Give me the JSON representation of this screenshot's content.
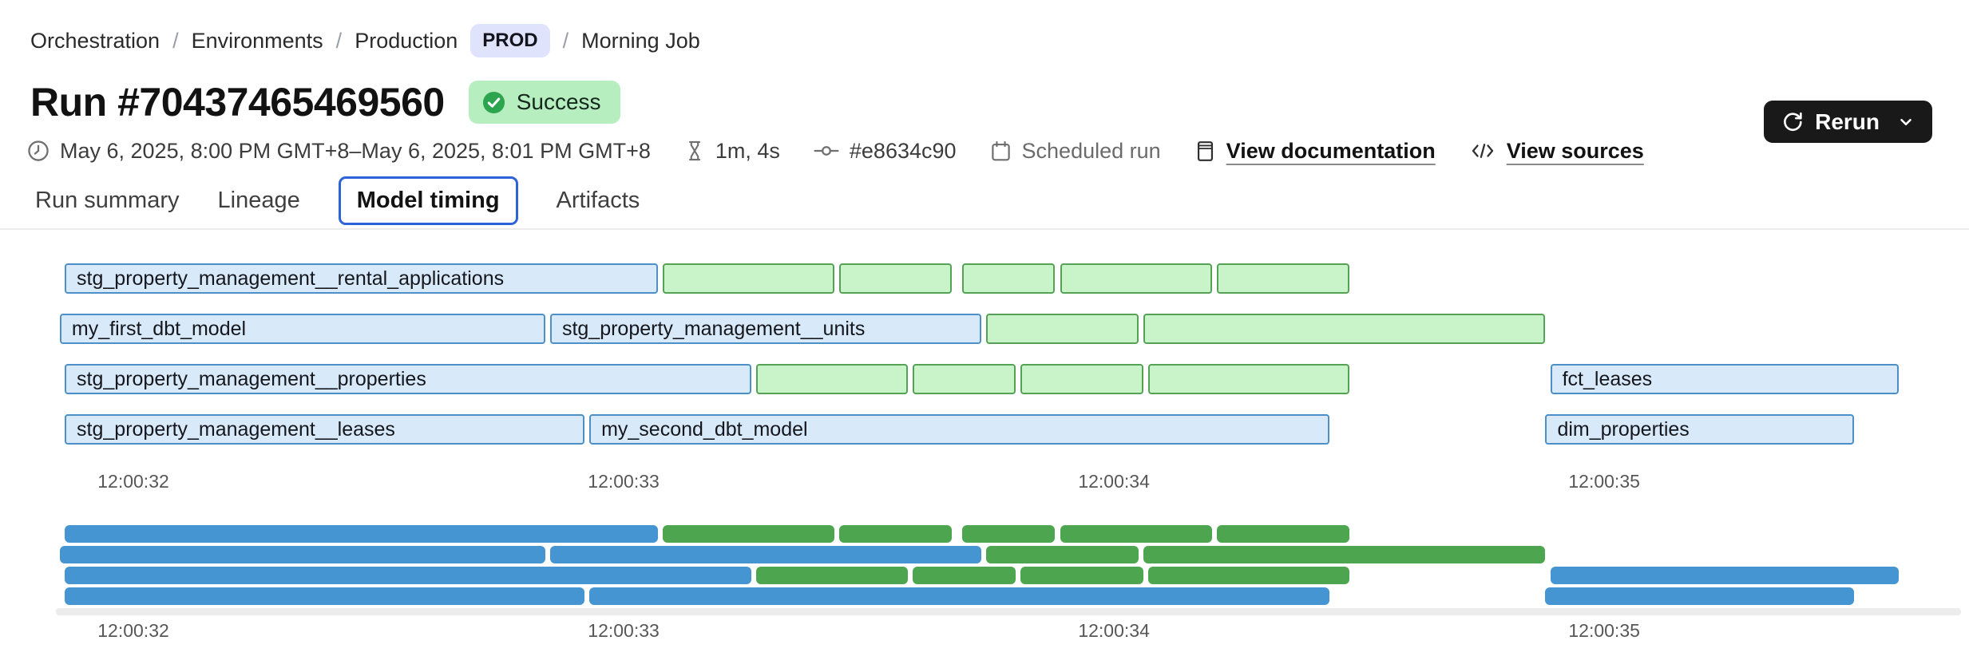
{
  "breadcrumb": {
    "items": [
      "Orchestration",
      "Environments",
      "Production"
    ],
    "env_badge": "PROD",
    "current": "Morning Job",
    "separator": "/"
  },
  "header": {
    "title": "Run #70437465469560",
    "status": "Success",
    "rerun_label": "Rerun"
  },
  "meta": {
    "time_range": "May 6, 2025, 8:00 PM GMT+8–May 6, 2025, 8:01 PM GMT+8",
    "duration": "1m, 4s",
    "commit": "#e8634c90",
    "trigger": "Scheduled run",
    "doc_link": "View documentation",
    "sources_link": "View sources"
  },
  "tabs": [
    {
      "label": "Run summary",
      "active": false
    },
    {
      "label": "Lineage",
      "active": false
    },
    {
      "label": "Model timing",
      "active": true
    },
    {
      "label": "Artifacts",
      "active": false
    }
  ],
  "colors": {
    "accent_blue": "#2f62d9",
    "badge_prod_bg": "#dfe3fb",
    "badge_success_bg": "#b7eec0",
    "badge_success_icon": "#2da44e",
    "rerun_bg": "#191919",
    "bar_blue_fill": "#d8e9fa",
    "bar_blue_border": "#4d90c7",
    "bar_green_fill": "#c9f4c9",
    "bar_green_border": "#55a257",
    "mini_blue": "#4495d1",
    "mini_green": "#4da64f"
  },
  "chart_data": {
    "type": "gantt",
    "title": "Model timing",
    "x_domain": [
      31.728,
      35.744
    ],
    "x_unit": "seconds after 12:00:00",
    "x_ticks": [
      {
        "label": "12:00:32",
        "t": 32
      },
      {
        "label": "12:00:33",
        "t": 33
      },
      {
        "label": "12:00:34",
        "t": 34
      },
      {
        "label": "12:00:35",
        "t": 35
      }
    ],
    "rows": [
      {
        "bars": [
          {
            "label": "stg_property_management__rental_applications",
            "kind": "blue",
            "start": 31.86,
            "end": 33.07
          },
          {
            "label": "",
            "kind": "green",
            "start": 33.08,
            "end": 33.43
          },
          {
            "label": "",
            "kind": "green",
            "start": 33.44,
            "end": 33.67
          },
          {
            "label": "",
            "kind": "green",
            "start": 33.69,
            "end": 33.88
          },
          {
            "label": "",
            "kind": "green",
            "start": 33.89,
            "end": 34.2
          },
          {
            "label": "",
            "kind": "green",
            "start": 34.21,
            "end": 34.48
          }
        ]
      },
      {
        "bars": [
          {
            "label": "my_first_dbt_model",
            "kind": "blue",
            "start": 31.85,
            "end": 32.84
          },
          {
            "label": "stg_property_management__units",
            "kind": "blue",
            "start": 32.85,
            "end": 33.73
          },
          {
            "label": "",
            "kind": "green",
            "start": 33.74,
            "end": 34.05
          },
          {
            "label": "",
            "kind": "green",
            "start": 34.06,
            "end": 34.88
          }
        ]
      },
      {
        "bars": [
          {
            "label": "stg_property_management__properties",
            "kind": "blue",
            "start": 31.86,
            "end": 33.26
          },
          {
            "label": "",
            "kind": "green",
            "start": 33.27,
            "end": 33.58
          },
          {
            "label": "",
            "kind": "green",
            "start": 33.59,
            "end": 33.8
          },
          {
            "label": "",
            "kind": "green",
            "start": 33.81,
            "end": 34.06
          },
          {
            "label": "",
            "kind": "green",
            "start": 34.07,
            "end": 34.48
          },
          {
            "label": "fct_leases",
            "kind": "blue",
            "start": 34.89,
            "end": 35.6
          }
        ]
      },
      {
        "bars": [
          {
            "label": "stg_property_management__leases",
            "kind": "blue",
            "start": 31.86,
            "end": 32.92
          },
          {
            "label": "my_second_dbt_model",
            "kind": "blue",
            "start": 32.93,
            "end": 34.44
          },
          {
            "label": "dim_properties",
            "kind": "blue",
            "start": 34.88,
            "end": 35.51
          }
        ]
      }
    ]
  }
}
